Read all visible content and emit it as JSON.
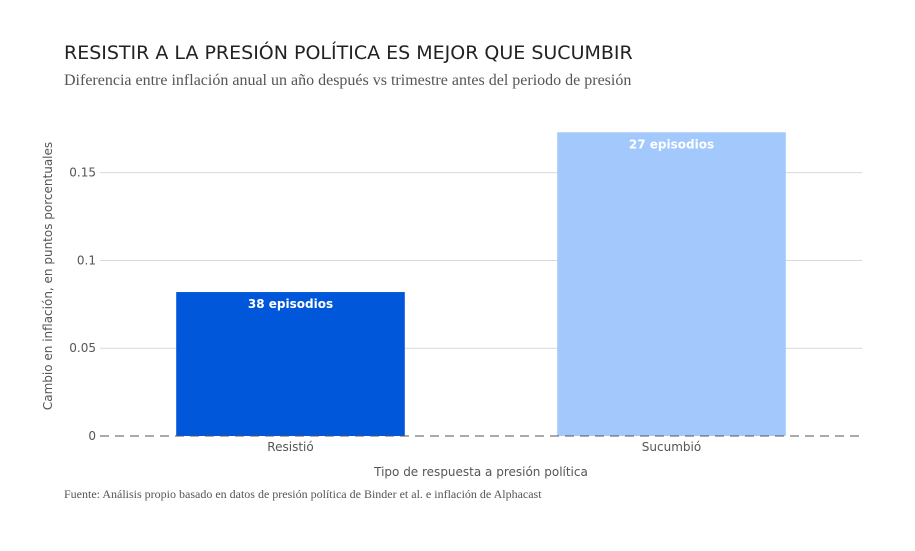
{
  "chart_data": {
    "type": "bar",
    "title": "RESISTIR A LA PRESIÓN POLÍTICA ES MEJOR QUE SUCUMBIR",
    "subtitle": "Diferencia entre inflación anual un año después vs trimestre antes del periodo de presión",
    "xlabel": "Tipo de respuesta a presión política",
    "ylabel": "Cambio en inflación, en puntos porcentuales",
    "categories": [
      "Resistió",
      "Sucumbió"
    ],
    "values": [
      0.082,
      0.173
    ],
    "bar_labels": [
      "38 episodios",
      "27 episodios"
    ],
    "bar_colors": [
      "#0057d9",
      "#a2c8fc"
    ],
    "ylim": [
      0,
      0.18
    ],
    "yticks": [
      0,
      0.05,
      0.1,
      0.15
    ],
    "ytick_labels": [
      "0",
      "0.05",
      "0.1",
      "0.15"
    ],
    "grid": true,
    "source": "Fuente: Análisis propio basado en datos de presión política de Binder et al. e inflación de Alphacast"
  }
}
